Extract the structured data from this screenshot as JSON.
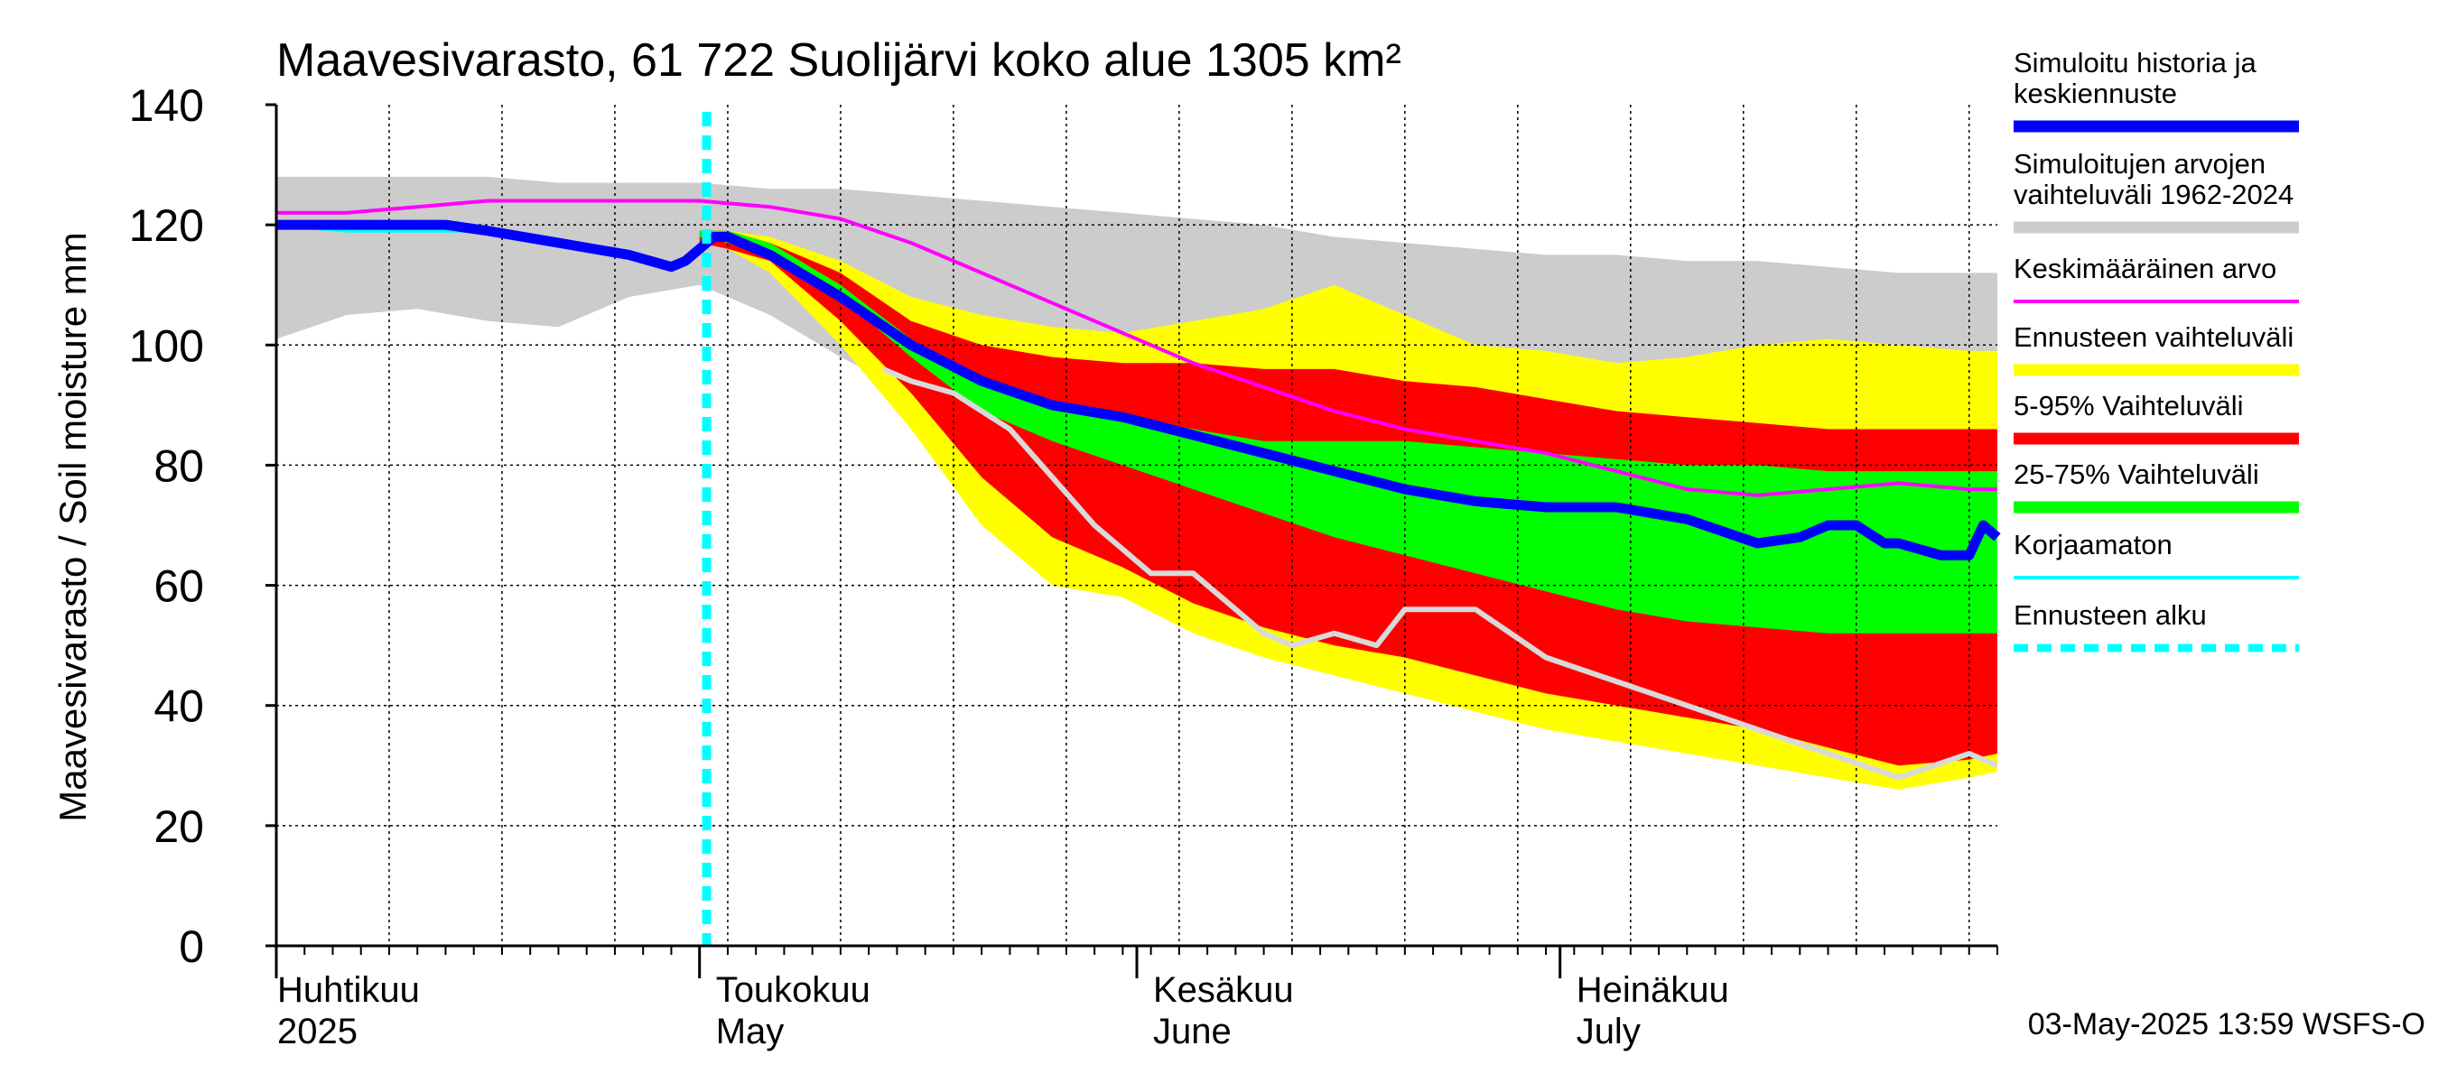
{
  "chart_data": {
    "type": "area",
    "title": "Maavesivarasto, 61 722 Suolijärvi koko alue 1305 km²",
    "ylabel": "Maavesivarasto / Soil moisture   mm",
    "ylim": [
      0,
      140
    ],
    "yticks": [
      0,
      20,
      40,
      60,
      80,
      100,
      120,
      140
    ],
    "x_days": [
      0,
      122
    ],
    "grid": true,
    "months": [
      {
        "fi": "Huhtikuu",
        "en": "2025",
        "day": 0
      },
      {
        "fi": "Toukokuu",
        "en": "May",
        "day": 30
      },
      {
        "fi": "Kesäkuu",
        "en": "June",
        "day": 61
      },
      {
        "fi": "Heinäkuu",
        "en": "July",
        "day": 91
      }
    ],
    "forecast_start_day": 30.5,
    "legend": [
      {
        "label": "Simuloitu historia ja keskiennuste",
        "color": "#0000ff",
        "style": "thick"
      },
      {
        "label": "Simuloitujen arvojen vaihteluväli 1962-2024",
        "color": "#cccccc",
        "style": "thick"
      },
      {
        "label": "Keskimääräinen arvo",
        "color": "#ff00ff",
        "style": "thin"
      },
      {
        "label": "Ennusteen vaihteluväli",
        "color": "#ffff00",
        "style": "thick"
      },
      {
        "label": "5-95% Vaihteluväli",
        "color": "#ff0000",
        "style": "thick"
      },
      {
        "label": "25-75% Vaihteluväli",
        "color": "#00ff00",
        "style": "thick"
      },
      {
        "label": "Korjaamaton",
        "color": "#00ffff",
        "style": "thin"
      },
      {
        "label": "Ennusteen alku",
        "color": "#00ffff",
        "style": "dashed"
      }
    ],
    "series": {
      "historical_range": {
        "x": [
          0,
          5,
          10,
          15,
          20,
          25,
          30,
          35,
          40,
          45,
          50,
          55,
          60,
          65,
          70,
          75,
          80,
          85,
          90,
          95,
          100,
          105,
          110,
          115,
          122
        ],
        "upper": [
          128,
          128,
          128,
          128,
          127,
          127,
          127,
          126,
          126,
          125,
          124,
          123,
          122,
          121,
          120,
          118,
          117,
          116,
          115,
          115,
          114,
          114,
          113,
          112,
          112
        ],
        "lower": [
          101,
          105,
          106,
          104,
          103,
          108,
          110,
          105,
          98,
          92,
          88,
          84,
          80,
          78,
          77,
          76,
          76,
          77,
          78,
          90,
          94,
          96,
          97,
          96,
          98
        ]
      },
      "forecast_outer": {
        "x": [
          30,
          32,
          35,
          40,
          45,
          50,
          55,
          60,
          65,
          70,
          75,
          80,
          85,
          90,
          95,
          100,
          105,
          110,
          115,
          120,
          122
        ],
        "upper": [
          119,
          119,
          118,
          114,
          108,
          105,
          103,
          102,
          104,
          106,
          110,
          105,
          100,
          99,
          97,
          98,
          100,
          101,
          100,
          99,
          99
        ],
        "lower": [
          117,
          116,
          112,
          100,
          86,
          70,
          60,
          58,
          52,
          48,
          45,
          42,
          39,
          36,
          34,
          32,
          30,
          28,
          26,
          28,
          29
        ]
      },
      "p5_95": {
        "x": [
          30,
          32,
          35,
          40,
          45,
          50,
          55,
          60,
          65,
          70,
          75,
          80,
          85,
          90,
          95,
          100,
          105,
          110,
          115,
          120,
          122
        ],
        "upper": [
          119,
          119,
          117,
          112,
          104,
          100,
          98,
          97,
          97,
          96,
          96,
          94,
          93,
          91,
          89,
          88,
          87,
          86,
          86,
          86,
          86
        ],
        "lower": [
          117,
          116,
          114,
          104,
          92,
          78,
          68,
          63,
          57,
          53,
          50,
          48,
          45,
          42,
          40,
          38,
          36,
          33,
          30,
          31,
          32
        ]
      },
      "p25_75": {
        "x": [
          30,
          32,
          35,
          40,
          45,
          50,
          55,
          60,
          65,
          70,
          75,
          80,
          85,
          90,
          95,
          100,
          105,
          110,
          115,
          120,
          122
        ],
        "upper": [
          119,
          119,
          117,
          110,
          101,
          94,
          90,
          88,
          86,
          84,
          84,
          84,
          83,
          82,
          81,
          80,
          80,
          79,
          79,
          79,
          79
        ],
        "lower": [
          118,
          117,
          115,
          108,
          98,
          89,
          84,
          80,
          76,
          72,
          68,
          65,
          62,
          59,
          56,
          54,
          53,
          52,
          52,
          52,
          52
        ]
      },
      "mean": {
        "x": [
          0,
          5,
          10,
          15,
          20,
          25,
          30,
          35,
          40,
          45,
          50,
          55,
          60,
          65,
          70,
          75,
          80,
          85,
          90,
          95,
          100,
          105,
          110,
          115,
          120,
          122
        ],
        "values": [
          122,
          122,
          123,
          124,
          124,
          124,
          124,
          123,
          121,
          117,
          112,
          107,
          102,
          97,
          93,
          89,
          86,
          84,
          82,
          79,
          76,
          75,
          76,
          77,
          76,
          76
        ]
      },
      "median": {
        "x": [
          0,
          5,
          10,
          12,
          15,
          20,
          25,
          28,
          29,
          30,
          31,
          32,
          35,
          40,
          45,
          50,
          55,
          60,
          65,
          70,
          75,
          80,
          85,
          90,
          95,
          100,
          105,
          108,
          110,
          112,
          114,
          115,
          118,
          120,
          121,
          122
        ],
        "values": [
          120,
          120,
          120,
          120,
          119,
          117,
          115,
          113,
          114,
          116,
          118,
          118,
          115,
          108,
          100,
          94,
          90,
          88,
          85,
          82,
          79,
          76,
          74,
          73,
          73,
          71,
          67,
          68,
          70,
          70,
          67,
          67,
          65,
          65,
          70,
          68
        ]
      },
      "uncorrected": {
        "x": [
          0,
          5,
          10,
          15,
          20,
          25,
          28
        ],
        "values": [
          120,
          119,
          119,
          119,
          117,
          115,
          113
        ]
      },
      "sim_low": {
        "x": [
          43,
          45,
          48,
          52,
          55,
          58,
          60,
          62,
          65,
          68,
          70,
          72,
          75,
          78,
          80,
          85,
          90,
          95,
          100,
          105,
          110,
          115,
          120,
          122
        ],
        "values": [
          96,
          94,
          92,
          86,
          78,
          70,
          66,
          62,
          62,
          56,
          52,
          50,
          52,
          50,
          56,
          56,
          48,
          44,
          40,
          36,
          32,
          28,
          32,
          30
        ]
      }
    },
    "timestamp": "03-May-2025 13:59 WSFS-O"
  }
}
